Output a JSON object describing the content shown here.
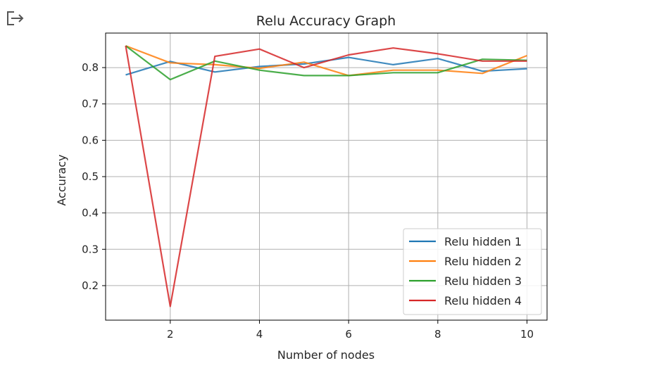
{
  "cell": {
    "output_icon": "output-arrow-icon"
  },
  "chart_data": {
    "type": "line",
    "title": "Relu Accuracy Graph",
    "xlabel": "Number of nodes",
    "ylabel": "Accuracy",
    "xlim": [
      0.55,
      10.45
    ],
    "ylim": [
      0.105,
      0.895
    ],
    "xticks": [
      2,
      4,
      6,
      8,
      10
    ],
    "xtick_labels": [
      "2",
      "4",
      "6",
      "8",
      "10"
    ],
    "yticks": [
      0.2,
      0.3,
      0.4,
      0.5,
      0.6,
      0.7,
      0.8
    ],
    "ytick_labels": [
      "0.2",
      "0.3",
      "0.4",
      "0.5",
      "0.6",
      "0.7",
      "0.8"
    ],
    "grid": true,
    "legend_position": "lower right",
    "x": [
      1,
      2,
      3,
      4,
      5,
      6,
      7,
      8,
      9,
      10
    ],
    "series": [
      {
        "name": "Relu hidden 1",
        "color": "#1f77b4",
        "values": [
          0.78,
          0.817,
          0.788,
          0.803,
          0.81,
          0.828,
          0.808,
          0.825,
          0.79,
          0.797
        ]
      },
      {
        "name": "Relu hidden 2",
        "color": "#ff7f0e",
        "values": [
          0.86,
          0.813,
          0.808,
          0.798,
          0.815,
          0.778,
          0.793,
          0.793,
          0.784,
          0.833
        ]
      },
      {
        "name": "Relu hidden 3",
        "color": "#2ca02c",
        "values": [
          0.86,
          0.767,
          0.818,
          0.793,
          0.778,
          0.778,
          0.786,
          0.786,
          0.823,
          0.82
        ]
      },
      {
        "name": "Relu hidden 4",
        "color": "#d62728",
        "values": [
          0.86,
          0.143,
          0.831,
          0.851,
          0.8,
          0.835,
          0.854,
          0.838,
          0.818,
          0.818
        ]
      }
    ]
  }
}
